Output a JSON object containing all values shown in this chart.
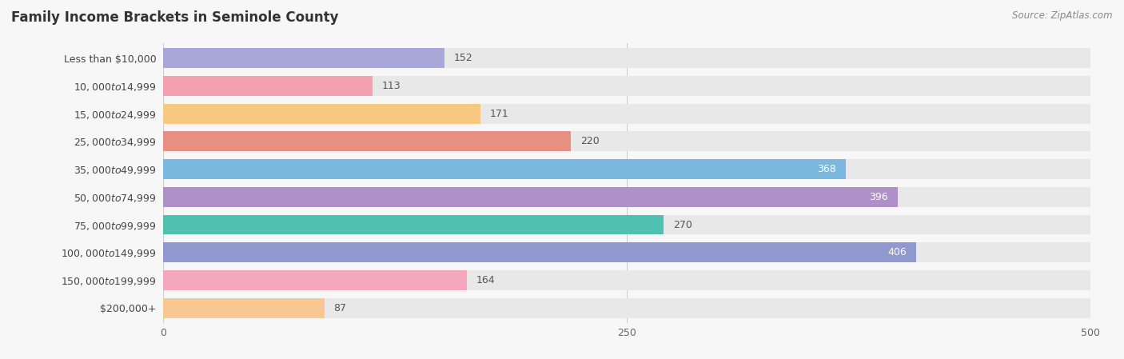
{
  "title": "Family Income Brackets in Seminole County",
  "source": "Source: ZipAtlas.com",
  "categories": [
    "Less than $10,000",
    "$10,000 to $14,999",
    "$15,000 to $24,999",
    "$25,000 to $34,999",
    "$35,000 to $49,999",
    "$50,000 to $74,999",
    "$75,000 to $99,999",
    "$100,000 to $149,999",
    "$150,000 to $199,999",
    "$200,000+"
  ],
  "values": [
    152,
    113,
    171,
    220,
    368,
    396,
    270,
    406,
    164,
    87
  ],
  "bar_colors": [
    "#a8a8d8",
    "#f4a0b0",
    "#f8c880",
    "#e89080",
    "#7ab8e0",
    "#b090c8",
    "#50c0b0",
    "#9098d0",
    "#f4a8c0",
    "#f8c890"
  ],
  "label_colors": [
    "dark",
    "dark",
    "dark",
    "dark",
    "white",
    "white",
    "dark",
    "white",
    "dark",
    "dark"
  ],
  "xlim": [
    0,
    500
  ],
  "xticks": [
    0,
    250,
    500
  ],
  "background_color": "#f7f7f7",
  "bar_background_color": "#e8e8e8",
  "title_fontsize": 12,
  "label_fontsize": 9,
  "value_fontsize": 9,
  "tick_fontsize": 9
}
